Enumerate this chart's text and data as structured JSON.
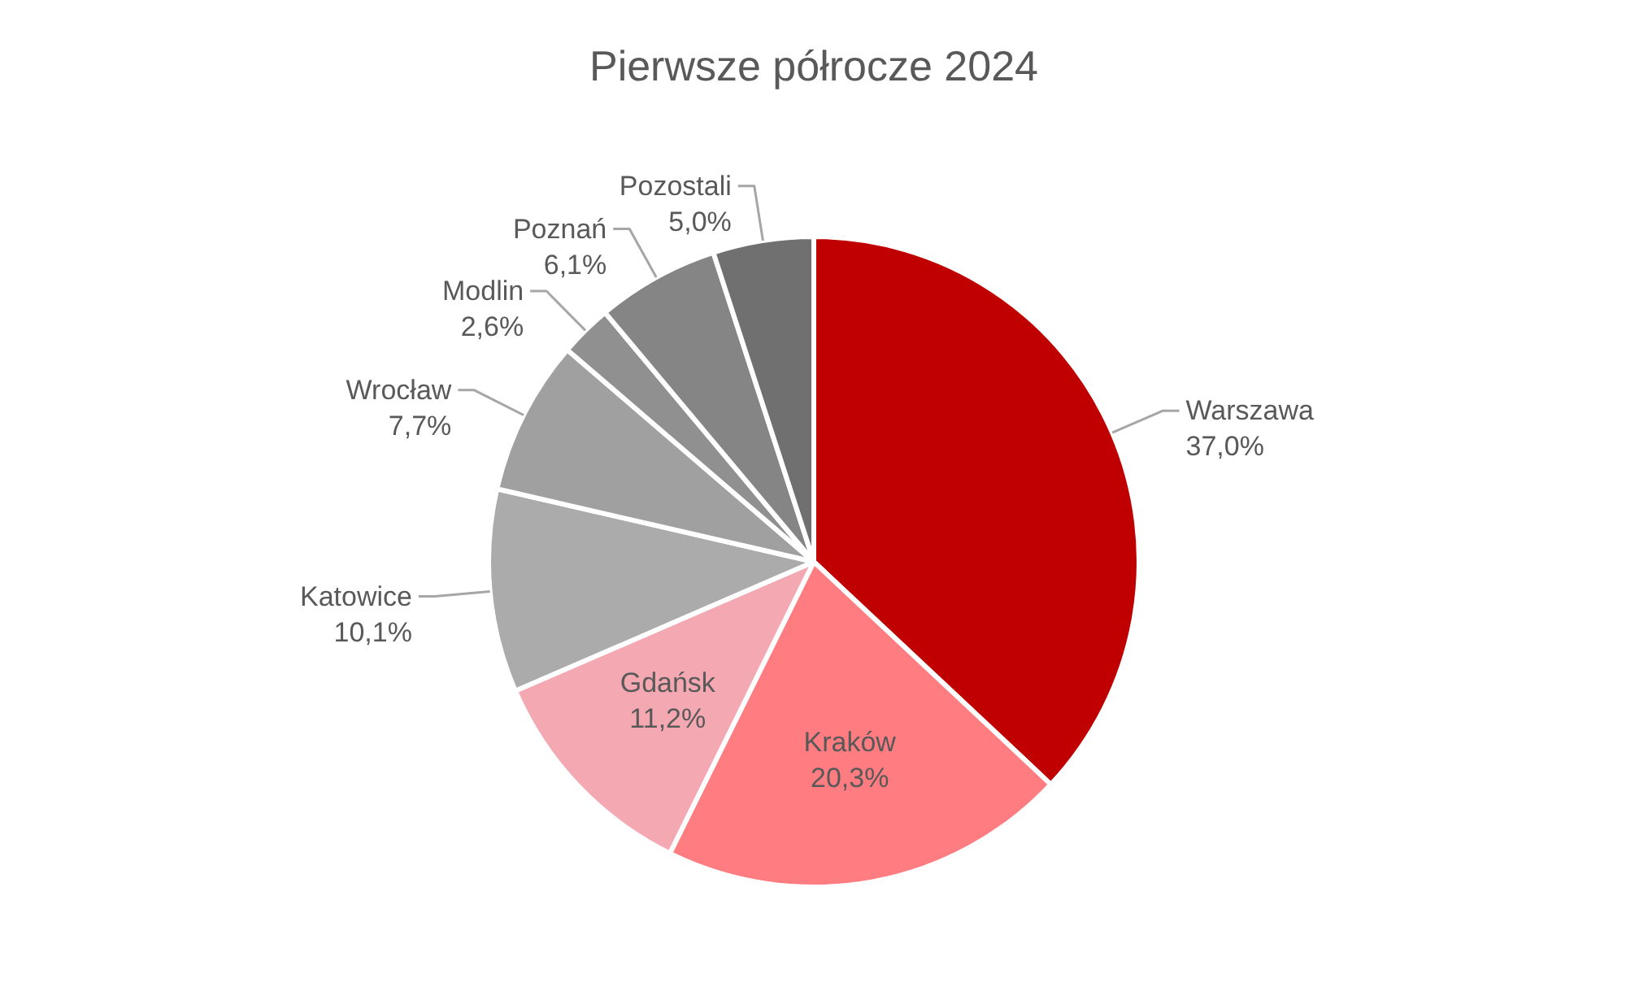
{
  "chart_data": {
    "type": "pie",
    "title": "Pierwsze półrocze 2024",
    "categories": [
      "Warszawa",
      "Kraków",
      "Gdańsk",
      "Katowice",
      "Wrocław",
      "Modlin",
      "Poznań",
      "Pozostali"
    ],
    "values": [
      37.0,
      20.3,
      11.2,
      10.1,
      7.7,
      2.6,
      6.1,
      5.0
    ],
    "colors": [
      "#c00000",
      "#ff7c80",
      "#f4a8b2",
      "#ababab",
      "#a0a0a0",
      "#909090",
      "#858585",
      "#707070"
    ],
    "value_labels": [
      "37,0%",
      "20,3%",
      "11,2%",
      "10,1%",
      "7,7%",
      "2,6%",
      "6,1%",
      "5,0%"
    ]
  }
}
